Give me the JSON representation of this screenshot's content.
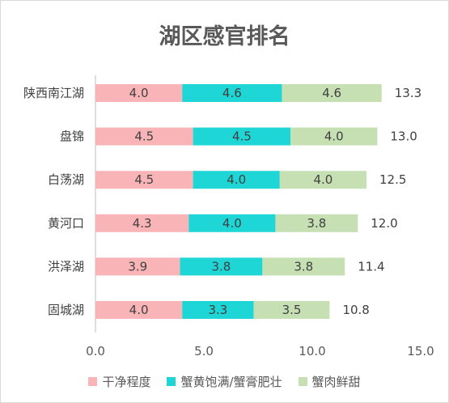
{
  "chart_data": {
    "type": "bar",
    "orientation": "horizontal",
    "stacked": true,
    "title": "湖区感官排名",
    "categories": [
      "陕西南江湖",
      "盘锦",
      "白荡湖",
      "黄河口",
      "洪泽湖",
      "固城湖"
    ],
    "series": [
      {
        "name": "干净程度",
        "color": "#f8b4b6",
        "values": [
          4.0,
          4.5,
          4.5,
          4.3,
          3.9,
          4.0
        ]
      },
      {
        "name": "蟹黄饱满/蟹膏肥壮",
        "color": "#1fd6d6",
        "values": [
          4.6,
          4.5,
          4.0,
          4.0,
          3.8,
          3.3
        ]
      },
      {
        "name": "蟹肉鲜甜",
        "color": "#c6e0b4",
        "values": [
          4.6,
          4.0,
          4.0,
          3.8,
          3.8,
          3.5
        ]
      }
    ],
    "totals": [
      "13.3",
      "13.0",
      "12.5",
      "12.0",
      "11.4",
      "10.8"
    ],
    "xlim": [
      0,
      15
    ],
    "xticks": [
      "0.0",
      "5.0",
      "10.0",
      "15.0"
    ],
    "legend_position": "bottom",
    "grid": false
  }
}
